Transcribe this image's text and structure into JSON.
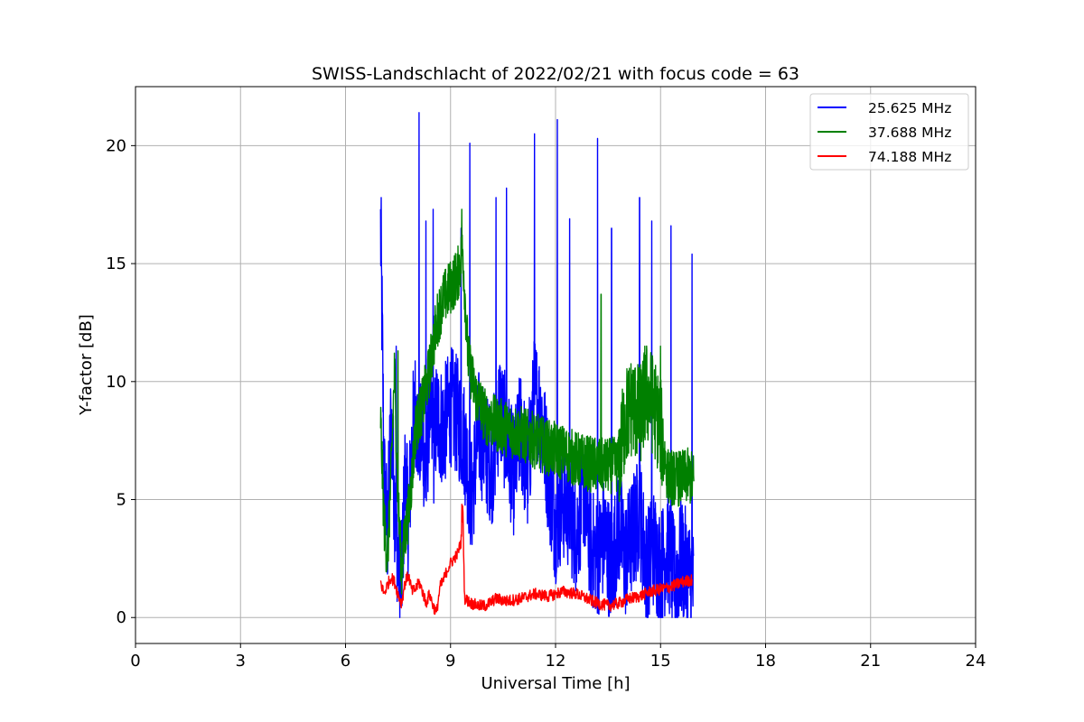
{
  "chart_data": {
    "type": "line",
    "title": "SWISS-Landschlacht of 2022/02/21 with focus code = 63",
    "xlabel": "Universal Time [h]",
    "ylabel": "Y-factor [dB]",
    "xlim": [
      0,
      24
    ],
    "ylim": [
      -1.1,
      22.5
    ],
    "xticks": [
      0,
      3,
      6,
      9,
      12,
      15,
      18,
      21,
      24
    ],
    "yticks": [
      0,
      5,
      10,
      15,
      20
    ],
    "grid": true,
    "legend_position": "top-right",
    "series": [
      {
        "name": "25.625 MHz",
        "color": "#0000ff",
        "x": [
          7.0,
          7.05,
          7.1,
          7.2,
          7.3,
          7.4,
          7.5,
          7.6,
          7.7,
          7.8,
          7.9,
          8.0,
          8.1,
          8.2,
          8.3,
          8.4,
          8.5,
          8.6,
          8.8,
          9.0,
          9.2,
          9.4,
          9.6,
          9.8,
          10.0,
          10.2,
          10.4,
          10.6,
          10.8,
          11.0,
          11.2,
          11.4,
          11.6,
          11.8,
          12.0,
          12.2,
          12.4,
          12.6,
          12.8,
          13.0,
          13.2,
          13.4,
          13.6,
          13.8,
          14.0,
          14.2,
          14.4,
          14.6,
          14.8,
          15.0,
          15.2,
          15.4,
          15.6,
          15.8,
          15.95
        ],
        "y": [
          16.5,
          12.0,
          6.0,
          3.5,
          8.5,
          5.0,
          2.5,
          1.5,
          6.0,
          4.0,
          7.5,
          9.0,
          7.0,
          8.0,
          5.5,
          9.5,
          7.0,
          8.5,
          8.0,
          9.0,
          8.5,
          7.5,
          5.0,
          8.0,
          7.0,
          6.5,
          9.0,
          7.5,
          6.0,
          8.0,
          6.0,
          9.5,
          8.5,
          6.0,
          4.0,
          5.0,
          4.5,
          3.5,
          5.5,
          3.0,
          2.5,
          3.5,
          2.0,
          4.0,
          2.5,
          3.5,
          4.5,
          2.0,
          3.0,
          2.0,
          3.0,
          1.5,
          2.5,
          1.8,
          1.2
        ],
        "spikes": [
          [
            7.02,
            17.8
          ],
          [
            7.45,
            11.5
          ],
          [
            8.1,
            21.4
          ],
          [
            8.3,
            16.8
          ],
          [
            8.5,
            17.3
          ],
          [
            9.3,
            16.5
          ],
          [
            9.55,
            20.1
          ],
          [
            10.3,
            17.8
          ],
          [
            10.6,
            18.2
          ],
          [
            11.4,
            20.5
          ],
          [
            12.05,
            21.1
          ],
          [
            12.4,
            16.9
          ],
          [
            13.2,
            20.3
          ],
          [
            13.6,
            16.5
          ],
          [
            14.4,
            17.8
          ],
          [
            14.75,
            16.8
          ],
          [
            15.3,
            16.6
          ],
          [
            15.9,
            15.4
          ]
        ]
      },
      {
        "name": "37.688 MHz",
        "color": "#008000",
        "x": [
          7.0,
          7.1,
          7.2,
          7.3,
          7.4,
          7.5,
          7.6,
          7.7,
          7.8,
          7.9,
          8.0,
          8.2,
          8.4,
          8.6,
          8.8,
          9.0,
          9.2,
          9.35,
          9.5,
          9.7,
          10.0,
          10.3,
          10.6,
          11.0,
          11.4,
          11.8,
          12.2,
          12.6,
          13.0,
          13.4,
          13.8,
          14.0,
          14.2,
          14.4,
          14.6,
          14.8,
          15.0,
          15.2,
          15.4,
          15.6,
          15.8,
          15.95
        ],
        "y": [
          8.5,
          4.0,
          2.5,
          6.0,
          10.5,
          5.0,
          2.0,
          3.5,
          4.5,
          6.0,
          8.0,
          9.0,
          10.5,
          12.5,
          13.5,
          14.0,
          14.5,
          15.5,
          11.0,
          9.5,
          8.5,
          8.2,
          8.0,
          7.8,
          7.5,
          7.2,
          7.0,
          6.7,
          6.5,
          6.4,
          6.5,
          8.5,
          9.0,
          8.5,
          9.5,
          9.0,
          8.0,
          6.0,
          5.9,
          5.9,
          6.0,
          5.8
        ],
        "spikes": [
          [
            7.5,
            11.3
          ],
          [
            8.6,
            12.5
          ],
          [
            9.32,
            17.3
          ],
          [
            13.3,
            13.7
          ],
          [
            14.55,
            11.5
          ],
          [
            15.0,
            11.5
          ]
        ]
      },
      {
        "name": "74.188 MHz",
        "color": "#ff0000",
        "x": [
          7.0,
          7.1,
          7.2,
          7.3,
          7.4,
          7.5,
          7.6,
          7.7,
          7.8,
          7.9,
          8.0,
          8.1,
          8.2,
          8.3,
          8.4,
          8.5,
          8.6,
          8.7,
          8.8,
          8.9,
          9.0,
          9.1,
          9.2,
          9.3,
          9.35,
          9.4,
          9.6,
          9.8,
          10.0,
          10.3,
          10.6,
          11.0,
          11.4,
          11.8,
          12.2,
          12.6,
          12.9,
          13.2,
          13.5,
          13.8,
          14.1,
          14.4,
          14.7,
          15.0,
          15.3,
          15.6,
          15.9
        ],
        "y": [
          1.5,
          1.0,
          1.4,
          1.7,
          1.5,
          1.0,
          0.6,
          1.5,
          1.8,
          1.1,
          1.2,
          1.5,
          1.1,
          0.6,
          1.0,
          0.5,
          0.2,
          1.3,
          1.6,
          2.0,
          2.3,
          2.5,
          2.7,
          3.2,
          4.8,
          0.8,
          0.6,
          0.5,
          0.5,
          0.8,
          0.7,
          0.8,
          1.0,
          0.9,
          1.1,
          1.0,
          0.8,
          0.6,
          0.5,
          0.6,
          0.8,
          0.9,
          1.1,
          1.2,
          1.3,
          1.5,
          1.6
        ],
        "spikes": [
          [
            9.32,
            4.8
          ]
        ]
      }
    ]
  }
}
